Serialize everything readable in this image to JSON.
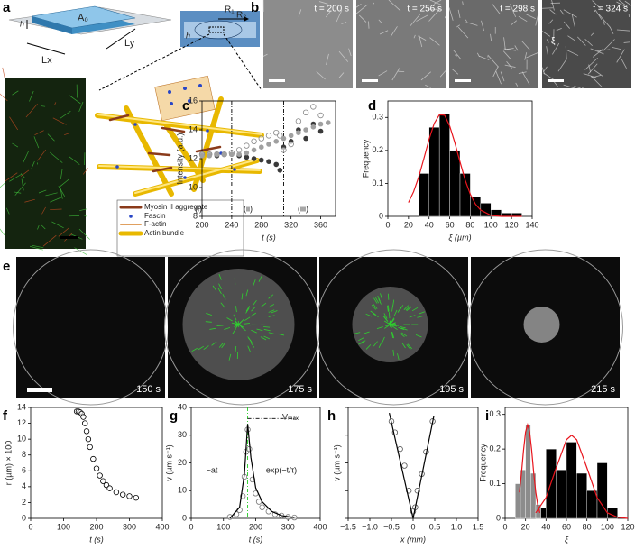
{
  "panel_labels": [
    "a",
    "b",
    "c",
    "d",
    "e",
    "f",
    "g",
    "h",
    "i"
  ],
  "schematic": {
    "h": "h",
    "area": "A₀",
    "lx": "Lx",
    "ly": "Ly"
  },
  "channel": {
    "h": "h",
    "r1": "R₁",
    "r2": "R₂"
  },
  "legend": [
    "Myosin II aggregate",
    "Fascin",
    "F-actin",
    "Actin bundle"
  ],
  "b_times": [
    "t = 200 s",
    "t = 256 s",
    "t = 298 s",
    "t = 324 s"
  ],
  "b_xi": "ξ",
  "e_times": [
    "150 s",
    "175 s",
    "195 s",
    "215 s"
  ],
  "chart_data": [
    {
      "type": "scatter",
      "xlabel": "t (s)",
      "ylabel": "Intensity (a.u.)",
      "xlim": [
        200,
        380
      ],
      "ylim": [
        8,
        16
      ],
      "xticks": [
        200,
        240,
        280,
        320,
        360
      ],
      "yticks": [
        8,
        10,
        12,
        14,
        16
      ],
      "vlines": [
        240,
        310
      ],
      "vline_color": "#000000",
      "annotations": [
        "(i)",
        "(ii)",
        "(iii)"
      ],
      "series": [
        {
          "color": "#3a3a3a",
          "marker": "filled",
          "x": [
            200,
            210,
            220,
            230,
            240,
            250,
            260,
            270,
            280,
            290,
            300,
            305,
            310,
            320,
            330,
            340,
            350,
            360
          ],
          "values": [
            12.3,
            12.3,
            12.2,
            12.3,
            12.3,
            12.2,
            12.1,
            12.0,
            11.9,
            11.8,
            11.6,
            11.2,
            12.8,
            13.2,
            14.0,
            13.4,
            14.4,
            13.9
          ]
        },
        {
          "color": "#888888",
          "marker": "open",
          "x": [
            200,
            210,
            220,
            230,
            240,
            250,
            260,
            270,
            280,
            290,
            300,
            305,
            310,
            320,
            330,
            340,
            350,
            360
          ],
          "values": [
            12.3,
            12.3,
            12.3,
            12.3,
            12.4,
            12.6,
            12.9,
            13.2,
            13.4,
            13.6,
            13.8,
            13.6,
            12.6,
            13.0,
            14.6,
            15.2,
            15.6,
            15.0
          ]
        },
        {
          "color": "#a0a0a0",
          "marker": "filled",
          "x": [
            200,
            210,
            220,
            230,
            240,
            250,
            260,
            270,
            280,
            290,
            300,
            310,
            320,
            330,
            340,
            350,
            360,
            370
          ],
          "values": [
            12.2,
            12.2,
            12.3,
            12.3,
            12.3,
            12.3,
            12.4,
            12.6,
            12.8,
            13.0,
            13.2,
            13.4,
            13.6,
            13.8,
            14.0,
            14.2,
            14.4,
            14.5
          ]
        }
      ]
    },
    {
      "type": "histogram",
      "xlabel": "ξ (µm)",
      "ylabel": "Frequency",
      "xlim": [
        0,
        140
      ],
      "ylim": [
        0,
        0.35
      ],
      "xticks": [
        0,
        20,
        40,
        60,
        80,
        100,
        120,
        140
      ],
      "yticks": [
        0,
        0.1,
        0.2,
        0.3
      ],
      "series": [
        {
          "color": "#000000",
          "bins": [
            30,
            40,
            50,
            60,
            70,
            80,
            90,
            100,
            110,
            120,
            130
          ],
          "values": [
            0.13,
            0.27,
            0.31,
            0.2,
            0.13,
            0.06,
            0.04,
            0.02,
            0.01,
            0.01
          ]
        }
      ],
      "fits": [
        {
          "color": "#e8141c",
          "x": [
            20,
            25,
            30,
            35,
            40,
            45,
            50,
            55,
            60,
            65,
            70,
            75,
            80,
            85,
            90,
            100,
            110,
            130
          ],
          "values": [
            0.042,
            0.075,
            0.12,
            0.176,
            0.234,
            0.282,
            0.308,
            0.307,
            0.274,
            0.223,
            0.165,
            0.11,
            0.067,
            0.037,
            0.019,
            0.003,
            0.0,
            0
          ]
        }
      ]
    },
    {
      "type": "scatter",
      "xlabel": "t (s)",
      "ylabel": "r (µm) × 100",
      "xlim": [
        0,
        400
      ],
      "ylim": [
        0,
        14
      ],
      "xticks": [
        0,
        100,
        200,
        300,
        400
      ],
      "yticks": [
        0,
        2,
        4,
        6,
        8,
        10,
        12,
        14
      ],
      "series": [
        {
          "color": "#000000",
          "marker": "open",
          "x": [
            140,
            145,
            150,
            155,
            160,
            165,
            170,
            175,
            180,
            190,
            200,
            210,
            220,
            230,
            240,
            260,
            280,
            300,
            320
          ],
          "values": [
            13.5,
            13.5,
            13.4,
            13.2,
            12.8,
            12,
            11,
            10,
            9,
            7.5,
            6.3,
            5.4,
            4.7,
            4.2,
            3.8,
            3.3,
            3.0,
            2.8,
            2.6
          ]
        }
      ]
    },
    {
      "type": "scatter",
      "xlabel": "t (s)",
      "ylabel": "v (µm s⁻¹)",
      "xlim": [
        0,
        400
      ],
      "ylim": [
        0,
        40
      ],
      "xticks": [
        0,
        100,
        200,
        300,
        400
      ],
      "yticks": [
        0,
        10,
        20,
        30,
        40
      ],
      "vlines": [
        175
      ],
      "vline_color": "#22cc22",
      "hlines": [
        36
      ],
      "hline_color": "#000000",
      "annotations": [
        "~at",
        "exp(−t/τ)",
        "Vₘₐₓ"
      ],
      "series": [
        {
          "color": "#777777",
          "marker": "open",
          "x": [
            120,
            140,
            150,
            160,
            165,
            170,
            175,
            180,
            190,
            200,
            210,
            220,
            240,
            260,
            280,
            300,
            320
          ],
          "values": [
            0.5,
            1.5,
            3,
            8,
            15,
            24,
            32,
            25,
            14,
            9,
            6,
            4,
            2.5,
            1.5,
            1,
            0.5,
            0.3
          ]
        }
      ],
      "fits": [
        {
          "color": "#000000",
          "x": [
            120,
            150,
            165,
            175,
            185,
            200,
            220,
            250,
            280,
            320
          ],
          "values": [
            0,
            4,
            16,
            34,
            22,
            11,
            6,
            2.5,
            1,
            0.3
          ]
        }
      ]
    },
    {
      "type": "scatter",
      "xlabel": "x (mm)",
      "ylabel": "v (µm s⁻¹)",
      "xlim": [
        -1.5,
        1.5
      ],
      "ylim": [
        0,
        8
      ],
      "ytick_labels": false,
      "xticks": [
        {
          "value": -1.5,
          "label": "−1.5"
        },
        {
          "value": -1,
          "label": "−1.0"
        },
        {
          "value": -0.5,
          "label": "−0.5"
        },
        0,
        0.5,
        {
          "value": 1,
          "label": "1.0"
        },
        1.5
      ],
      "yticks": [
        0,
        2,
        4,
        6,
        8
      ],
      "series": [
        {
          "color": "#555555",
          "marker": "open",
          "x": [
            -0.5,
            -0.42,
            -0.3,
            -0.2,
            -0.1,
            0,
            0.05,
            0.1,
            0.2,
            0.3,
            0.45
          ],
          "values": [
            7,
            6.2,
            5,
            3.8,
            2,
            0.5,
            0.8,
            2,
            3.2,
            4.8,
            7
          ]
        }
      ],
      "fits": [
        {
          "color": "#000000",
          "x": [
            -0.55,
            0,
            0.48
          ],
          "values": [
            7.6,
            0,
            7.4
          ]
        }
      ]
    },
    {
      "type": "histogram",
      "xlabel": "ξ",
      "ylabel": "Frequency",
      "xlim": [
        0,
        120
      ],
      "ylim": [
        0,
        0.32
      ],
      "xticks": [
        0,
        20,
        40,
        60,
        80,
        100,
        120
      ],
      "yticks": [
        0,
        0.1,
        0.2,
        0.3
      ],
      "series": [
        {
          "color": "#000000",
          "bins": [
            30,
            40,
            50,
            60,
            70,
            80,
            90,
            100,
            110
          ],
          "values": [
            0.03,
            0.2,
            0.14,
            0.22,
            0.13,
            0.08,
            0.16,
            0.03
          ]
        },
        {
          "color": "#8c8c8c",
          "bins": [
            10,
            15,
            20,
            25,
            30,
            35
          ],
          "values": [
            0.1,
            0.14,
            0.27,
            0.13,
            0.04
          ]
        }
      ],
      "fits": [
        {
          "color": "#e8141c",
          "x": [
            14,
            16,
            18,
            20,
            22,
            24,
            26,
            28,
            30,
            32,
            34
          ],
          "values": [
            0.075,
            0.13,
            0.196,
            0.249,
            0.27,
            0.249,
            0.196,
            0.13,
            0.075,
            0.037,
            0.016
          ]
        },
        {
          "color": "#e8141c",
          "x": [
            30,
            40,
            50,
            60,
            65,
            70,
            80,
            90,
            100,
            110,
            120
          ],
          "values": [
            0.016,
            0.06,
            0.146,
            0.227,
            0.24,
            0.227,
            0.146,
            0.06,
            0.016,
            0.003,
            0
          ]
        }
      ]
    }
  ]
}
